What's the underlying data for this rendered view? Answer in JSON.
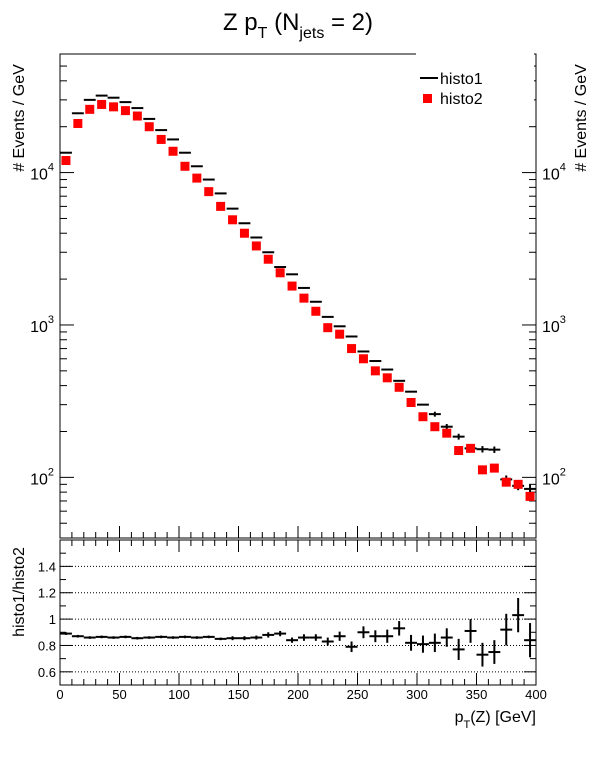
{
  "chart_data": [
    {
      "type": "scatter",
      "title_parts": {
        "a": "Z p",
        "b": "T",
        "c": " (N",
        "d": "jets",
        "e": " = 2)"
      },
      "ylabel": "# Events / GeV",
      "yscale": "log",
      "ylim": [
        40,
        60000
      ],
      "xlim": [
        0,
        400
      ],
      "ytick_labels": [
        {
          "value": 100,
          "base": "10",
          "exp": "2"
        },
        {
          "value": 1000,
          "base": "10",
          "exp": "3"
        },
        {
          "value": 10000,
          "base": "10",
          "exp": "4"
        }
      ],
      "legend": {
        "position": "top-right",
        "entries": [
          "histo1",
          "histo2"
        ]
      },
      "x": [
        5,
        15,
        25,
        35,
        45,
        55,
        65,
        75,
        85,
        95,
        105,
        115,
        125,
        135,
        145,
        155,
        165,
        175,
        185,
        195,
        205,
        215,
        225,
        235,
        245,
        255,
        265,
        275,
        285,
        295,
        305,
        315,
        325,
        335,
        345,
        355,
        365,
        375,
        385,
        395
      ],
      "series": [
        {
          "name": "histo1",
          "marker": "hline-errorbar",
          "color": "#000000",
          "values": [
            13500,
            24500,
            30000,
            32000,
            31000,
            29000,
            26500,
            22500,
            19000,
            16500,
            13500,
            11000,
            9000,
            7300,
            5800,
            4650,
            3750,
            3000,
            2400,
            2150,
            1750,
            1420,
            1130,
            980,
            840,
            670,
            580,
            510,
            430,
            365,
            300,
            260,
            215,
            185,
            155,
            153,
            152,
            97,
            88,
            84
          ]
        },
        {
          "name": "histo2",
          "marker": "square",
          "color": "#ff0000",
          "values": [
            12000,
            21000,
            26000,
            28000,
            27000,
            25500,
            23500,
            20000,
            16500,
            13800,
            11000,
            9200,
            7500,
            6000,
            4900,
            4000,
            3300,
            2700,
            2200,
            1800,
            1500,
            1230,
            960,
            870,
            700,
            600,
            500,
            450,
            390,
            310,
            250,
            215,
            195,
            150,
            155,
            112,
            115,
            93,
            90,
            75
          ]
        }
      ]
    },
    {
      "type": "scatter",
      "ylabel": "histo1/histo2",
      "xlabel_parts": {
        "a": "p",
        "b": "T",
        "c": "(Z) [GeV]"
      },
      "xlim": [
        0,
        400
      ],
      "ylim": [
        0.5,
        1.6
      ],
      "grid_y": [
        0.6,
        0.8,
        1.0,
        1.2,
        1.4
      ],
      "ytick_labels": [
        "0.6",
        "0.8",
        "1",
        "1.2",
        "1.4"
      ],
      "xtick_labels": [
        "0",
        "50",
        "100",
        "150",
        "200",
        "250",
        "300",
        "350",
        "400"
      ],
      "xtick_values": [
        0,
        50,
        100,
        150,
        200,
        250,
        300,
        350,
        400
      ],
      "series": [
        {
          "name": "histo1/histo2",
          "marker": "cross-errorbar",
          "color": "#000000",
          "values": [
            0.89,
            0.87,
            0.86,
            0.865,
            0.86,
            0.865,
            0.855,
            0.86,
            0.865,
            0.86,
            0.865,
            0.86,
            0.865,
            0.85,
            0.855,
            0.855,
            0.86,
            0.88,
            0.89,
            0.84,
            0.86,
            0.86,
            0.83,
            0.87,
            0.79,
            0.9,
            0.87,
            0.87,
            0.93,
            0.82,
            0.81,
            0.82,
            0.86,
            0.77,
            0.91,
            0.73,
            0.75,
            0.92,
            1.03,
            0.84
          ],
          "errors": [
            0.01,
            0.01,
            0.01,
            0.01,
            0.01,
            0.01,
            0.01,
            0.01,
            0.01,
            0.01,
            0.01,
            0.01,
            0.01,
            0.01,
            0.015,
            0.015,
            0.015,
            0.02,
            0.02,
            0.02,
            0.025,
            0.025,
            0.03,
            0.035,
            0.04,
            0.045,
            0.045,
            0.05,
            0.055,
            0.06,
            0.065,
            0.07,
            0.07,
            0.08,
            0.09,
            0.09,
            0.09,
            0.12,
            0.13,
            0.13
          ]
        }
      ]
    }
  ]
}
